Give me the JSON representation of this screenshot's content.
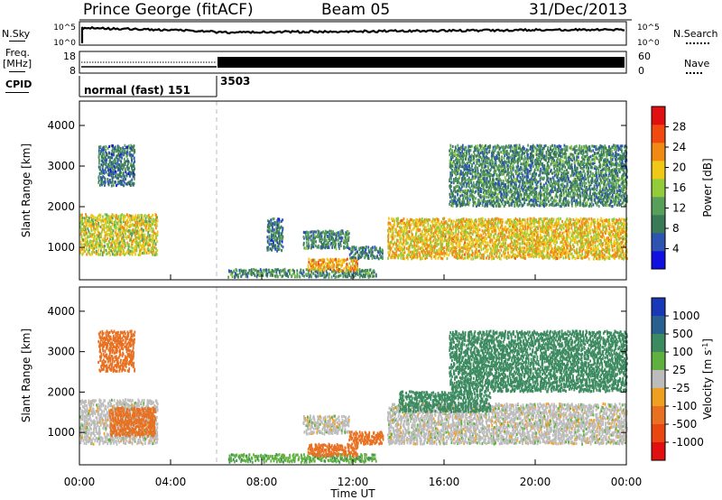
{
  "header": {
    "title": "Prince George (fitACF)",
    "beam": "Beam 05",
    "date": "31/Dec/2013"
  },
  "side_labels": {
    "nsky": "N.Sky",
    "nsearch": "N.Search",
    "freq": "Freq.",
    "freq_unit": "[MHz]",
    "nave": "Nave",
    "cpid": "CPID"
  },
  "noise_panel": {
    "left_ticks": [
      "10^5",
      "10^0"
    ],
    "right_ticks": [
      "10^5",
      "10^0"
    ]
  },
  "freq_panel": {
    "left_ticks": [
      "18",
      "8"
    ],
    "right_ticks": [
      "60",
      "0"
    ]
  },
  "cpid_panel": {
    "segments": [
      {
        "label": "normal (fast) 151",
        "start_hour": 0
      },
      {
        "label": "3503",
        "start_hour": 6
      }
    ]
  },
  "colors": {
    "power": [
      "#1010e0",
      "#2c54b0",
      "#3a7a56",
      "#58a05a",
      "#92cc3a",
      "#f0c818",
      "#f08a14",
      "#f04a10",
      "#e01010"
    ],
    "velocity": [
      "#1838b8",
      "#2a6090",
      "#3c8a60",
      "#60b040",
      "#bcbcbc",
      "#f0a020",
      "#e87020",
      "#e84810",
      "#e01010"
    ]
  },
  "chart_data": [
    {
      "type": "heatmap",
      "name": "power",
      "ylabel": "Slant Range [km]",
      "xlim_hours": [
        0,
        24
      ],
      "ylim": [
        200,
        4600
      ],
      "yticks": [
        "1000",
        "2000",
        "3000",
        "4000"
      ],
      "colorbar": {
        "label": "Power [dB]",
        "range": [
          0,
          32
        ],
        "ticks": [
          "4",
          "8",
          "12",
          "16",
          "20",
          "24",
          "28"
        ]
      },
      "regions": [
        {
          "t": [
            0.0,
            3.4
          ],
          "r": [
            800,
            1800
          ],
          "v": 18
        },
        {
          "t": [
            0.8,
            2.4
          ],
          "r": [
            2500,
            3500
          ],
          "v": 8
        },
        {
          "t": [
            6.5,
            13.0
          ],
          "r": [
            250,
            450
          ],
          "v": 10
        },
        {
          "t": [
            8.2,
            8.9
          ],
          "r": [
            900,
            1700
          ],
          "v": 8
        },
        {
          "t": [
            9.8,
            11.8
          ],
          "r": [
            950,
            1400
          ],
          "v": 10
        },
        {
          "t": [
            10.0,
            12.2
          ],
          "r": [
            400,
            700
          ],
          "v": 22
        },
        {
          "t": [
            11.8,
            13.3
          ],
          "r": [
            700,
            1000
          ],
          "v": 9
        },
        {
          "t": [
            13.5,
            24.0
          ],
          "r": [
            700,
            1700
          ],
          "v": 20
        },
        {
          "t": [
            16.2,
            24.0
          ],
          "r": [
            2000,
            3500
          ],
          "v": 10
        }
      ]
    },
    {
      "type": "heatmap",
      "name": "velocity",
      "ylabel": "Slant Range [km]",
      "xlabel": "Time UT",
      "xlim_hours": [
        0,
        24
      ],
      "ylim": [
        200,
        4600
      ],
      "yticks": [
        "1000",
        "2000",
        "3000",
        "4000"
      ],
      "xticks": [
        "00:00",
        "04:00",
        "08:00",
        "12:00",
        "16:00",
        "20:00",
        "00:00"
      ],
      "colorbar": {
        "label": "Velocity [m s^-1]",
        "ticks": [
          "1000",
          "500",
          "100",
          "25",
          "-25",
          "-100",
          "-500",
          "-1000"
        ]
      },
      "regions": [
        {
          "t": [
            0.0,
            3.4
          ],
          "r": [
            700,
            1800
          ],
          "v": 0
        },
        {
          "t": [
            1.3,
            3.3
          ],
          "r": [
            900,
            1600
          ],
          "v": -200
        },
        {
          "t": [
            0.8,
            2.4
          ],
          "r": [
            2500,
            3500
          ],
          "v": -150
        },
        {
          "t": [
            6.5,
            13.0
          ],
          "r": [
            250,
            450
          ],
          "v": 80
        },
        {
          "t": [
            9.8,
            11.8
          ],
          "r": [
            950,
            1400
          ],
          "v": 0
        },
        {
          "t": [
            10.0,
            12.2
          ],
          "r": [
            400,
            700
          ],
          "v": -150
        },
        {
          "t": [
            11.8,
            13.3
          ],
          "r": [
            700,
            1000
          ],
          "v": -150
        },
        {
          "t": [
            13.5,
            24.0
          ],
          "r": [
            700,
            1700
          ],
          "v": 0
        },
        {
          "t": [
            14.0,
            18.0
          ],
          "r": [
            1500,
            2000
          ],
          "v": 200
        },
        {
          "t": [
            16.2,
            24.0
          ],
          "r": [
            2000,
            3500
          ],
          "v": 300
        }
      ]
    }
  ]
}
